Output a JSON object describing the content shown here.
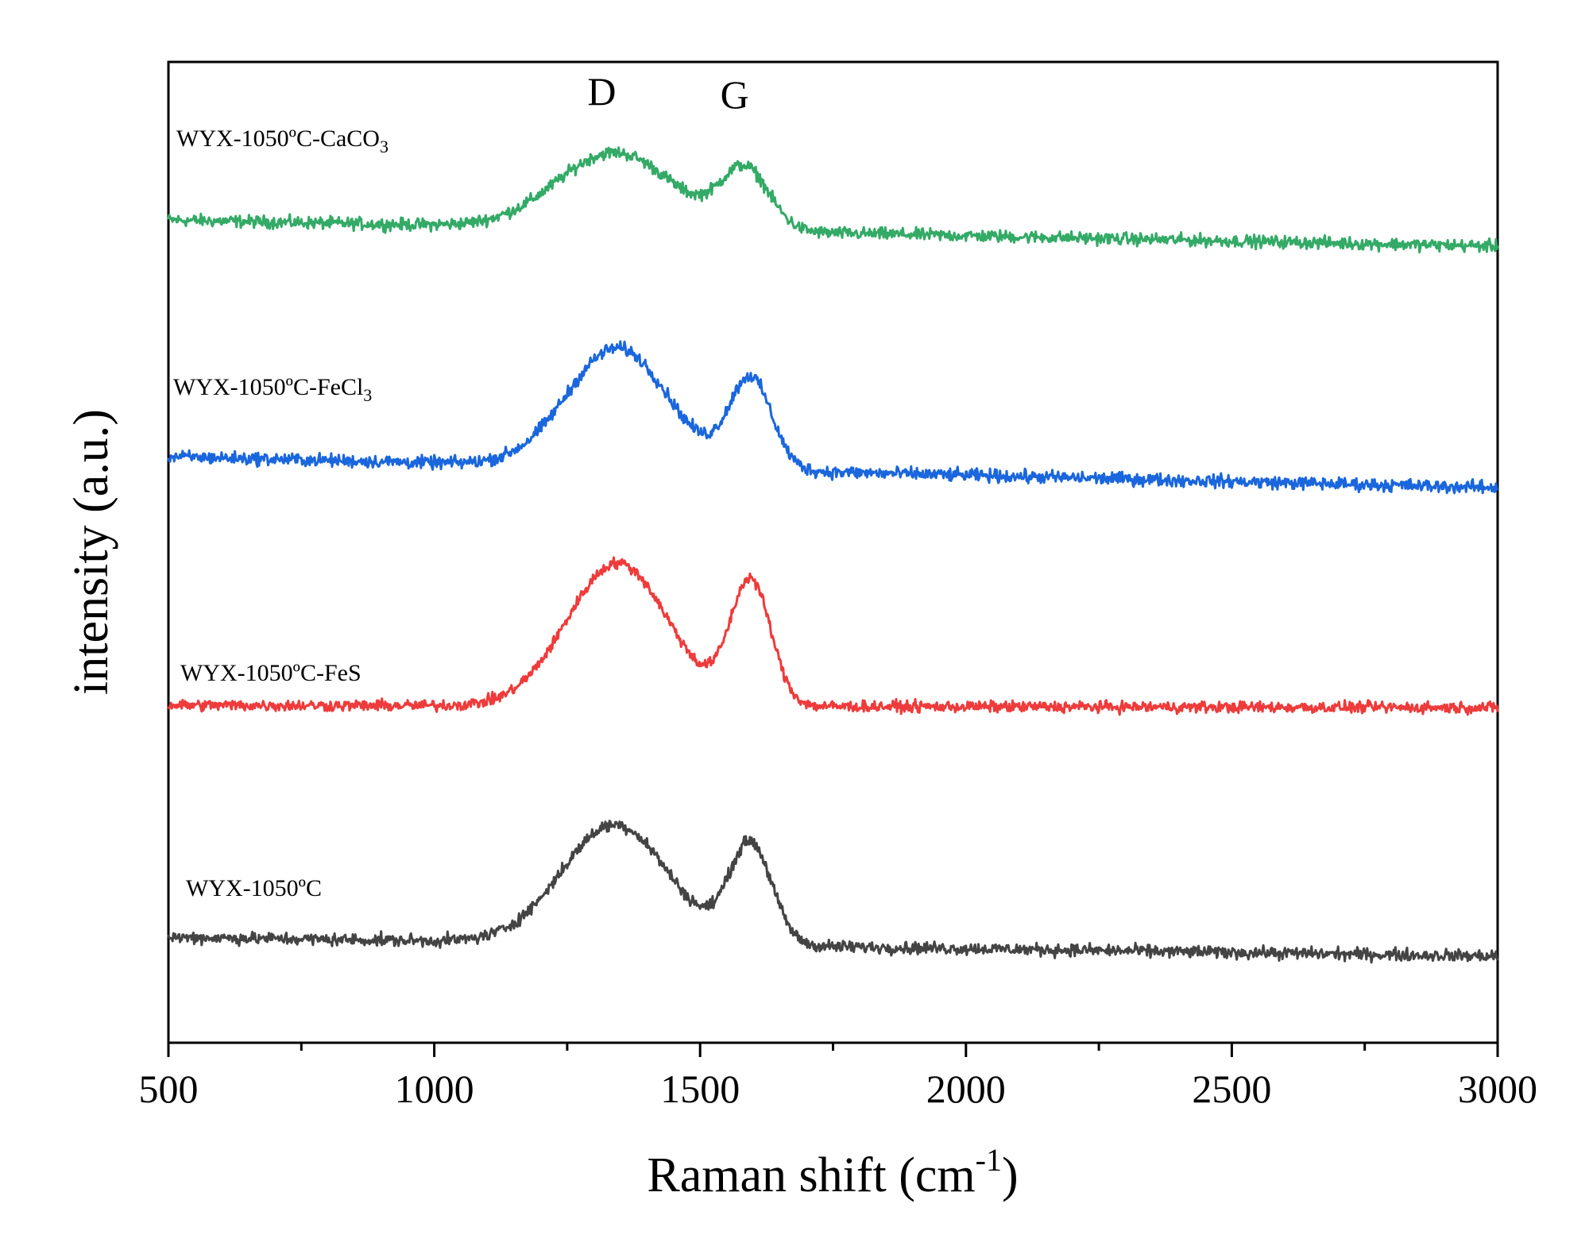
{
  "chart_data": {
    "type": "line",
    "title": "",
    "xlabel": "Raman shift (cm",
    "xlabel_sup": "-1",
    "xlabel_close": ")",
    "ylabel": "intensity (a.u.)",
    "xlim": [
      500,
      3000
    ],
    "x_ticks": [
      500,
      1000,
      1500,
      2000,
      2500,
      3000
    ],
    "x_minor_step": 250,
    "y_ticks_shown": false,
    "grid": false,
    "peak_markers": [
      {
        "label": "D",
        "x": 1330
      },
      {
        "label": "G",
        "x": 1580
      }
    ],
    "series": [
      {
        "name": "WYX-1050ºC-CaCO",
        "name_sub": "3",
        "color": "#33aa66",
        "offset": 3.0,
        "baseline_start": 0.08,
        "baseline_end": -0.03,
        "d_peak": {
          "center": 1340,
          "height": 0.32,
          "width": 110
        },
        "g_peak": {
          "center": 1585,
          "height": 0.25,
          "width": 45
        },
        "noise": 0.038
      },
      {
        "name": "WYX-1050ºC-FeCl",
        "name_sub": "3",
        "color": "#1a66dd",
        "offset": 2.0,
        "baseline_start": 0.08,
        "baseline_end": -0.05,
        "d_peak": {
          "center": 1345,
          "height": 0.5,
          "width": 95
        },
        "g_peak": {
          "center": 1595,
          "height": 0.38,
          "width": 40
        },
        "noise": 0.04
      },
      {
        "name": "WYX-1050ºC-FeS",
        "name_sub": "",
        "color": "#ee3b3b",
        "offset": 1.0,
        "baseline_start": 0.03,
        "baseline_end": 0.02,
        "d_peak": {
          "center": 1345,
          "height": 0.6,
          "width": 95
        },
        "g_peak": {
          "center": 1595,
          "height": 0.52,
          "width": 38
        },
        "noise": 0.035
      },
      {
        "name": "WYX-1050ºC",
        "name_sub": "",
        "color": "#444444",
        "offset": 0.0,
        "baseline_start": 0.05,
        "baseline_end": -0.03,
        "d_peak": {
          "center": 1340,
          "height": 0.5,
          "width": 100
        },
        "g_peak": {
          "center": 1595,
          "height": 0.42,
          "width": 40
        },
        "noise": 0.038
      }
    ]
  }
}
